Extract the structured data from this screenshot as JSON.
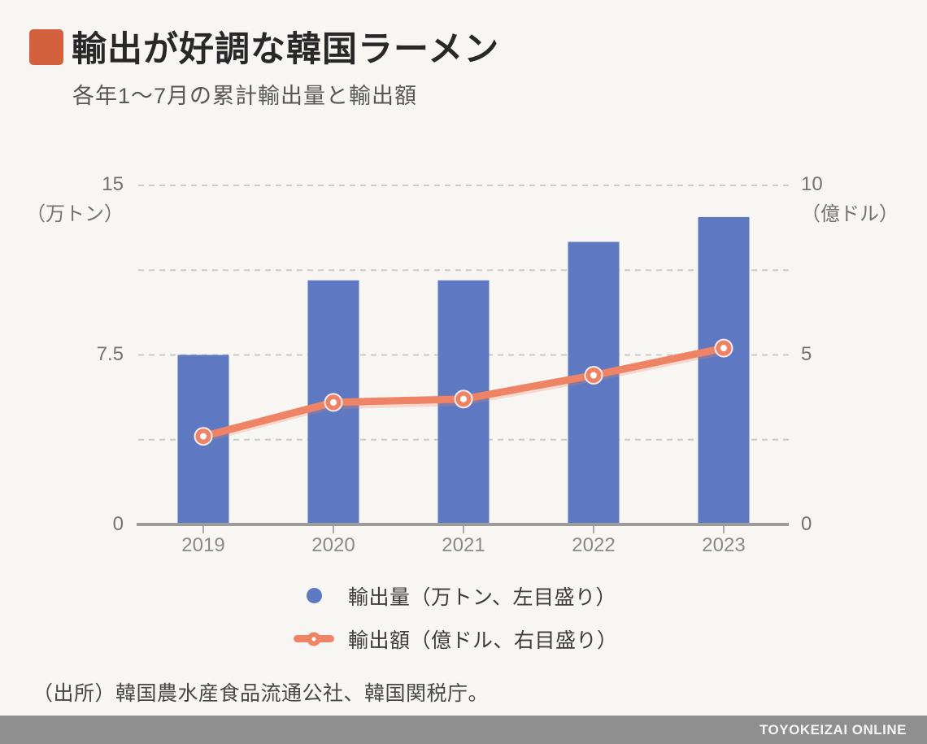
{
  "title": "輸出が好調な韓国ラーメン",
  "subtitle": "各年1〜7月の累計輸出量と輸出額",
  "source": "（出所）韓国農水産食品流通公社、韓国関税庁。",
  "footer": {
    "brand": "TOYOKEIZAI ONLINE"
  },
  "colors": {
    "accent_orange": "#d4613e",
    "bar_blue": "#5e78c1",
    "line_orange": "#ef8365",
    "line_shadow": "rgba(239,131,101,0.25)",
    "marker_inner": "#ffffff",
    "grid": "#cbcbc8",
    "axis": "#9b9b9b",
    "axis_tick": "#a9a9a9",
    "footer_gray": "#8f8f8f",
    "background": "#f7f6f3"
  },
  "left_axis": {
    "ticks": [
      "15",
      "7.5",
      "0"
    ],
    "unit": "（万トン）"
  },
  "right_axis": {
    "ticks": [
      "10",
      "5",
      "0"
    ],
    "unit": "（億ドル）"
  },
  "legend": [
    {
      "label": "輸出量（万トン、左目盛り）",
      "marker": "circle"
    },
    {
      "label": "輸出額（億ドル、右目盛り）",
      "marker": "line-dot"
    }
  ],
  "chart_data": {
    "type": "bar+line",
    "categories": [
      "2019",
      "2020",
      "2021",
      "2022",
      "2023"
    ],
    "series": [
      {
        "name": "輸出量（万トン、左目盛り）",
        "type": "bar",
        "axis": "left",
        "values": [
          7.5,
          10.8,
          10.8,
          12.5,
          13.6
        ]
      },
      {
        "name": "輸出額（億ドル、右目盛り）",
        "type": "line",
        "axis": "right",
        "values": [
          2.6,
          3.6,
          3.7,
          4.4,
          5.2
        ]
      }
    ],
    "left_ylim": [
      0,
      15
    ],
    "right_ylim": [
      0,
      10
    ],
    "gridlines_left_values": [
      15,
      11.25,
      7.5,
      3.75
    ],
    "grid_style": "dashed",
    "legend_position": "bottom"
  }
}
